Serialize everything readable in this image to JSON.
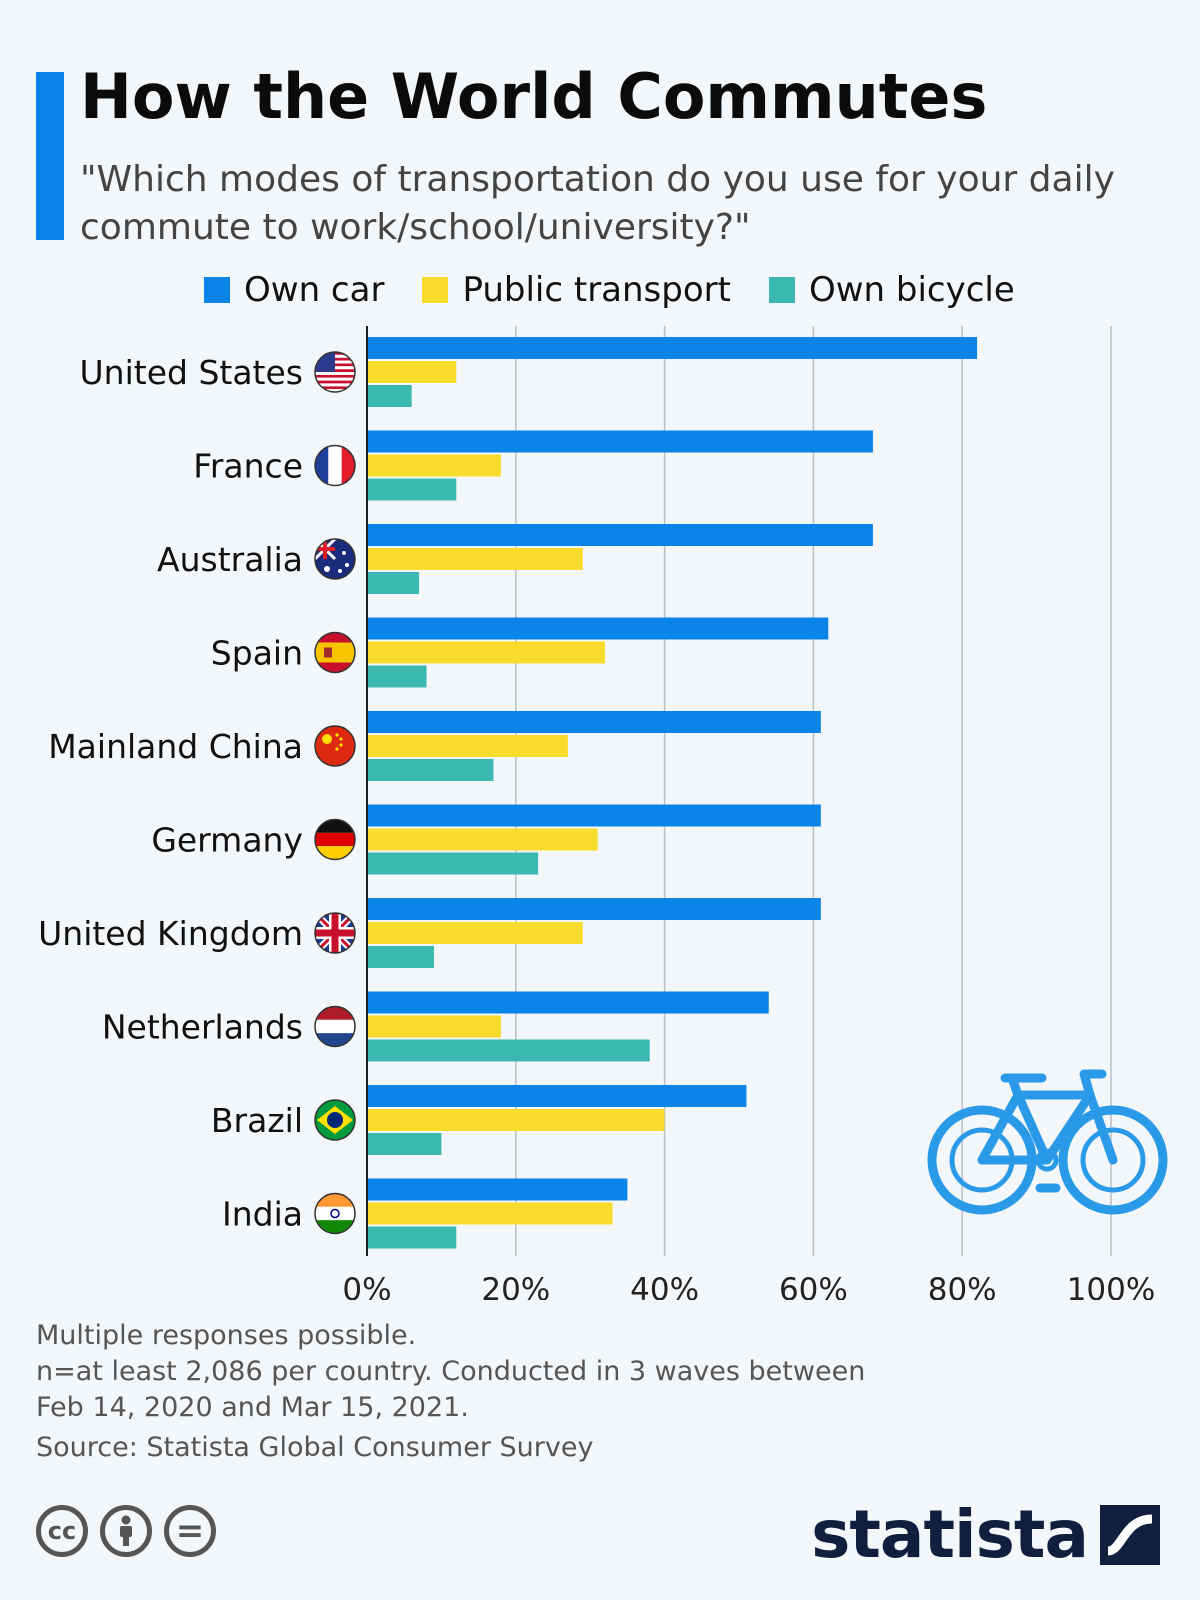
{
  "header": {
    "title": "How the World Commutes",
    "subtitle": "\"Which modes of transportation do you use for your daily commute to work/school/university?\""
  },
  "colors": {
    "accent": "#0b84e8",
    "own_car": "#0b84e8",
    "public_transport": "#f7dc2c",
    "own_bicycle": "#3bb8b0",
    "grid": "#b9bfc6"
  },
  "chart_data": {
    "type": "bar",
    "orientation": "horizontal",
    "title": "How the World Commutes",
    "categories": [
      "United States",
      "France",
      "Australia",
      "Spain",
      "Mainland China",
      "Germany",
      "United Kingdom",
      "Netherlands",
      "Brazil",
      "India"
    ],
    "series": [
      {
        "name": "Own car",
        "values": [
          82,
          68,
          68,
          62,
          61,
          61,
          61,
          54,
          51,
          35
        ]
      },
      {
        "name": "Public transport",
        "values": [
          12,
          18,
          29,
          32,
          27,
          31,
          29,
          18,
          40,
          33
        ]
      },
      {
        "name": "Own bicycle",
        "values": [
          6,
          12,
          7,
          8,
          17,
          23,
          9,
          38,
          10,
          12
        ]
      }
    ],
    "xlim": [
      0,
      100
    ],
    "xticks": [
      0,
      20,
      40,
      60,
      80,
      100
    ],
    "xtick_labels": [
      "0%",
      "20%",
      "40%",
      "60%",
      "80%",
      "100%"
    ],
    "grid": true,
    "legend_position": "top"
  },
  "footer": {
    "note_line1": "Multiple responses possible.",
    "note_line2": "n=at least 2,086 per country. Conducted in 3 waves between",
    "note_line3": "Feb 14, 2020 and Mar 15, 2021.",
    "source": "Source: Statista Global Consumer Survey",
    "license_icons": [
      "cc-icon",
      "attribution-icon",
      "no-derivatives-icon"
    ],
    "cc_label": "cc",
    "nd_label": "=",
    "brand": "statista"
  }
}
